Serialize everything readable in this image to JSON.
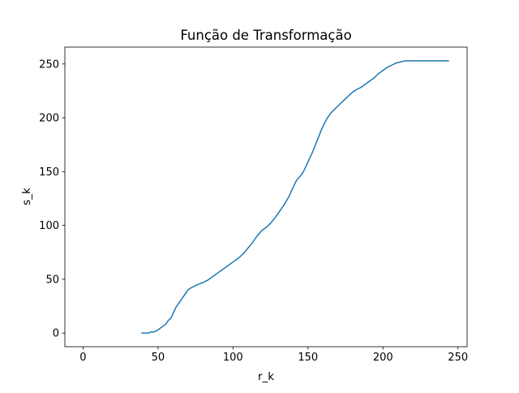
{
  "chart_data": {
    "type": "line",
    "title": "Função de Transformação",
    "xlabel": "r_k",
    "ylabel": "s_k",
    "xlim": [
      -12.1,
      256.1
    ],
    "ylim": [
      -12.7,
      265.7
    ],
    "xticks": [
      0,
      50,
      100,
      150,
      200,
      250
    ],
    "yticks": [
      0,
      50,
      100,
      150,
      200,
      250
    ],
    "grid": false,
    "line_color": "#1f77b4",
    "series": [
      {
        "x": [
          39,
          44,
          45,
          47,
          49,
          51,
          52,
          53,
          54,
          55,
          56,
          57,
          58,
          59,
          60,
          61,
          62,
          63,
          64,
          65,
          66,
          67,
          68,
          69,
          70,
          72,
          75,
          78,
          80,
          83,
          86,
          88,
          90,
          93,
          96,
          98,
          100,
          102,
          104,
          107,
          110,
          113,
          116,
          119,
          122,
          125,
          128,
          131,
          134,
          137,
          140,
          142,
          143,
          145,
          147,
          149,
          151,
          153,
          155,
          157,
          159,
          161,
          163,
          165,
          167,
          170,
          173,
          176,
          179,
          182,
          185,
          188,
          191,
          194,
          197,
          200,
          203,
          206,
          209,
          212,
          215,
          218,
          221,
          224,
          228,
          232,
          236,
          240,
          244
        ],
        "y": [
          0,
          0,
          1,
          1,
          2,
          4,
          5,
          6,
          7,
          8,
          10,
          12,
          13,
          15,
          18,
          21,
          24,
          26,
          28,
          30,
          32,
          34,
          36,
          38,
          40,
          42,
          44,
          46,
          47,
          49,
          52,
          54,
          56,
          59,
          62,
          64,
          66,
          68,
          70,
          74,
          79,
          84,
          90,
          95,
          98,
          102,
          107,
          113,
          119,
          126,
          135,
          141,
          143,
          146,
          150,
          156,
          162,
          168,
          175,
          182,
          189,
          195,
          200,
          204,
          207,
          211,
          215,
          219,
          223,
          226,
          228,
          231,
          234,
          237,
          241,
          244,
          247,
          249,
          251,
          252,
          253,
          253,
          253,
          253,
          253,
          253,
          253,
          253,
          253
        ]
      }
    ]
  }
}
